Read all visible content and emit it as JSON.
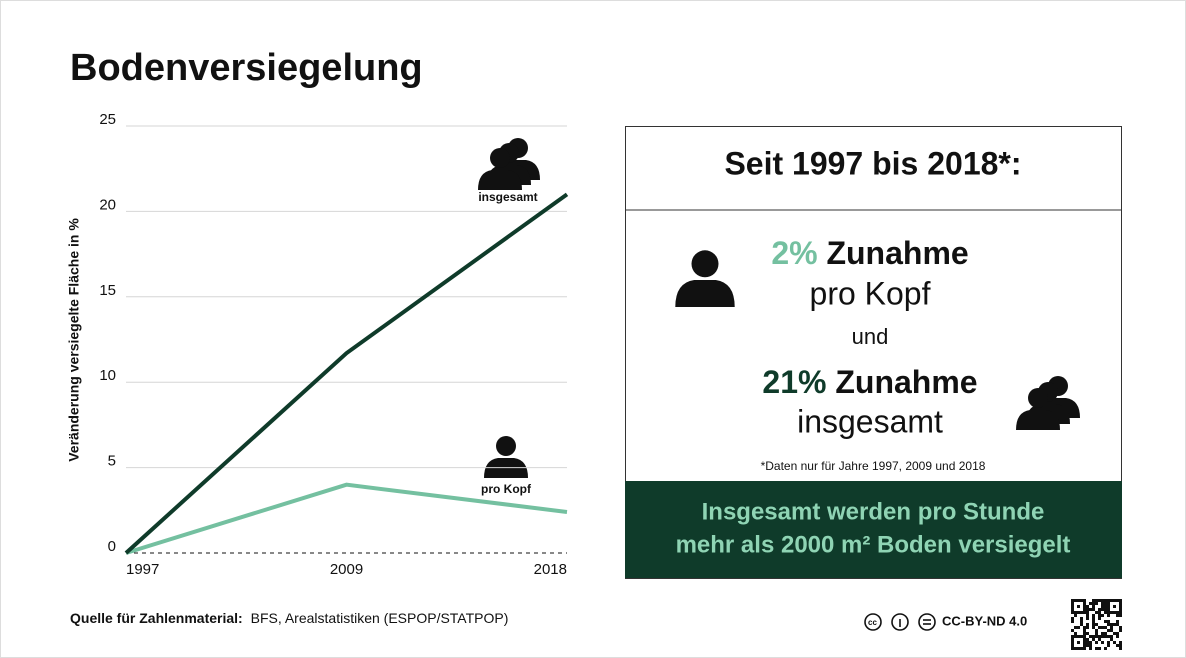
{
  "title": "Bodenversiegelung",
  "chart_data": {
    "type": "line",
    "y_label": "Veränderung  versiegelte Fläche in %",
    "categories": [
      "1997",
      "2009",
      "2018"
    ],
    "series": [
      {
        "name": "insgesamt",
        "color": "#0f3b2a",
        "values": [
          0,
          11.7,
          21
        ]
      },
      {
        "name": "pro Kopf",
        "color": "#74c0a0",
        "values": [
          0,
          4,
          2.4
        ]
      }
    ],
    "ylim": [
      0,
      25
    ],
    "yticks": [
      0,
      5,
      10,
      15,
      20,
      25
    ],
    "grid": true
  },
  "panel": {
    "header": "Seit 1997 bis 2018*:",
    "per_capita": {
      "percent": "2%",
      "word": "Zunahme",
      "line2": "pro Kopf"
    },
    "conjunction": "und",
    "total": {
      "percent": "21%",
      "word": "Zunahme",
      "line2": "insgesamt"
    },
    "footnote": "*Daten nur für Jahre 1997, 2009 und 2018",
    "banner": [
      "Insgesamt werden pro Stunde",
      "mehr als 2000 m² Boden versiegelt"
    ]
  },
  "source": {
    "label": "Quelle für Zahlenmaterial:",
    "text": "BFS, Arealstatistiken (ESPOP/STATPOP)"
  },
  "license": "CC-BY-ND 4.0"
}
